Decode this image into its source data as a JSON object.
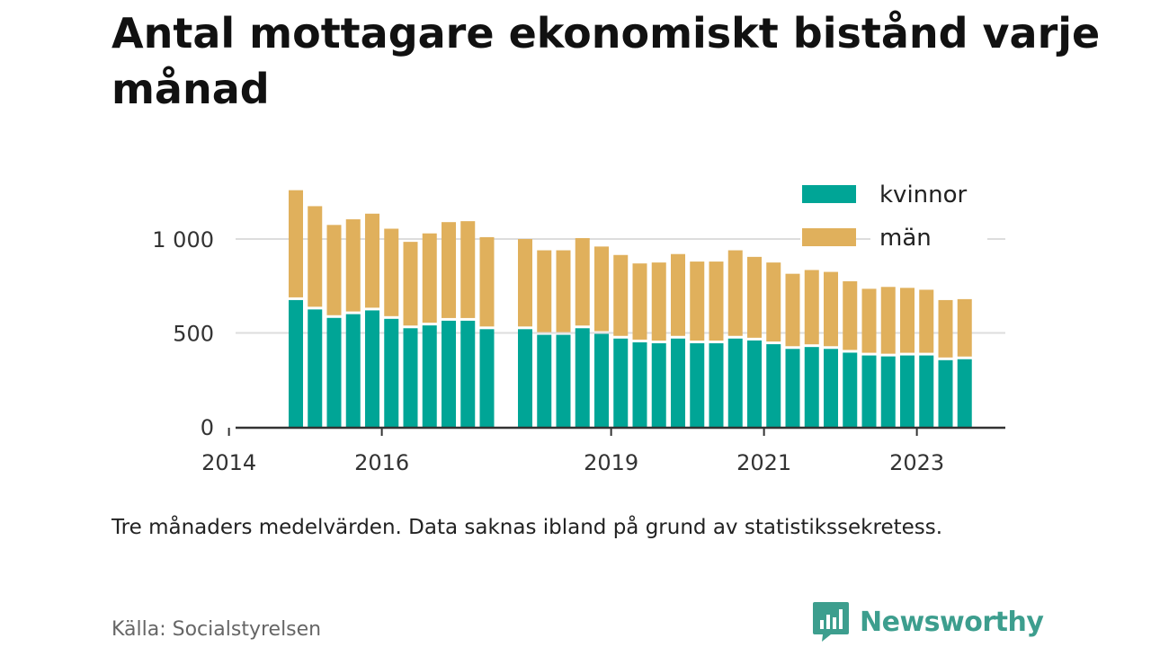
{
  "title": "Antal mottagare ekonomiskt bistånd varje månad",
  "note": "Tre månaders medelvärden. Data saknas ibland på grund av statistikssekretess.",
  "source": "Källa: Socialstyrelsen",
  "brand": {
    "name": "Newsworthy",
    "icon": "newsworthy-logo-icon",
    "color": "#3d9e8e"
  },
  "colors": {
    "kvinnor": "#00a596",
    "man": "#e0b05c",
    "grid": "#dddddd",
    "axis": "#333333"
  },
  "chart_data": {
    "type": "bar",
    "stacked": true,
    "x_unit": "quarter",
    "x": [
      "2014 Q3",
      "2014 Q4",
      "2015 Q1",
      "2015 Q2",
      "2015 Q3",
      "2015 Q4",
      "2016 Q1",
      "2016 Q2",
      "2016 Q3",
      "2016 Q4",
      "2017 Q1",
      "2017 Q2",
      "2017 Q3",
      "2017 Q4",
      "2018 Q1",
      "2018 Q2",
      "2018 Q3",
      "2018 Q4",
      "2019 Q1",
      "2019 Q2",
      "2019 Q3",
      "2019 Q4",
      "2020 Q1",
      "2020 Q2",
      "2020 Q3",
      "2020 Q4",
      "2021 Q1",
      "2021 Q2",
      "2021 Q3",
      "2021 Q4",
      "2022 Q1",
      "2022 Q2",
      "2022 Q3",
      "2022 Q4",
      "2023 Q1",
      "2023 Q2"
    ],
    "series": [
      {
        "name": "kvinnor",
        "values": [
          675,
          625,
          580,
          600,
          620,
          575,
          525,
          540,
          565,
          565,
          520,
          null,
          520,
          490,
          490,
          525,
          495,
          470,
          450,
          445,
          470,
          445,
          445,
          470,
          460,
          440,
          415,
          425,
          415,
          395,
          380,
          375,
          380,
          380,
          355,
          360
        ]
      },
      {
        "name": "män",
        "values": [
          585,
          550,
          495,
          505,
          515,
          480,
          460,
          490,
          525,
          530,
          490,
          null,
          480,
          450,
          450,
          480,
          465,
          445,
          420,
          430,
          450,
          435,
          435,
          470,
          445,
          435,
          400,
          410,
          410,
          380,
          355,
          370,
          360,
          350,
          320,
          320
        ]
      }
    ],
    "yticks": [
      0,
      500,
      1000
    ],
    "ytick_labels": [
      "0",
      "500",
      "1 000"
    ],
    "ylim": [
      0,
      1300
    ],
    "xticks": [
      "2014",
      "2016",
      "2019",
      "2021",
      "2023"
    ],
    "xlabel": "",
    "ylabel": "",
    "grid": true,
    "legend_position": "top-right"
  }
}
